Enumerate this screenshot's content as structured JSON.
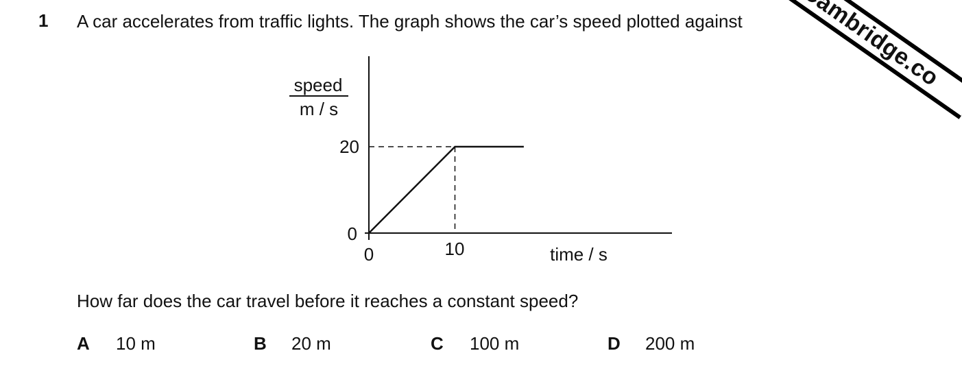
{
  "question": {
    "number": "1",
    "stem": "A car accelerates from traffic lights. The graph shows the car’s speed plotted against",
    "prompt": "How far does the car travel before it reaches a constant speed?"
  },
  "watermark": {
    "text": "aCambridge.co"
  },
  "options": [
    {
      "letter": "A",
      "value": "10 m"
    },
    {
      "letter": "B",
      "value": "20 m"
    },
    {
      "letter": "C",
      "value": "100 m"
    },
    {
      "letter": "D",
      "value": "200 m"
    }
  ],
  "chart_data": {
    "type": "line",
    "ylabel_top": "speed",
    "ylabel_bottom": "m / s",
    "xlabel": "time / s",
    "x_ticks": [
      "0",
      "10"
    ],
    "y_ticks": [
      "0",
      "20"
    ],
    "series": [
      {
        "x": [
          0,
          10,
          18
        ],
        "y": [
          0,
          20,
          20
        ]
      }
    ],
    "reference_lines": "dashed lines from (10, 20) to both axes",
    "xlim": [
      0,
      35
    ],
    "ylim": [
      0,
      41
    ]
  }
}
